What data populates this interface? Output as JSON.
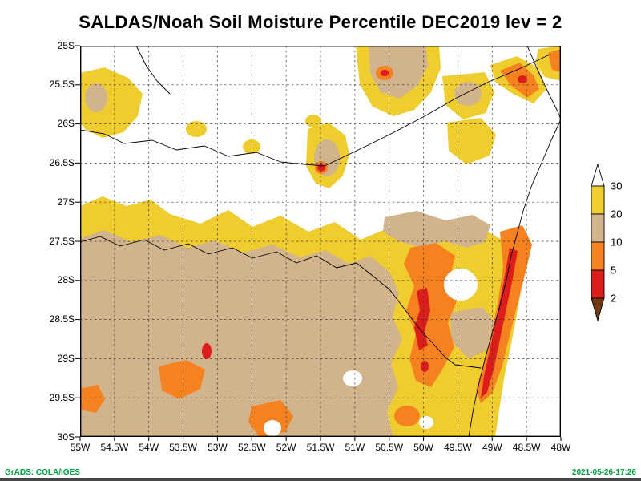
{
  "chart_data": {
    "type": "heatmap",
    "title": "SALDAS/Noah Soil Moisture Percentile DEC2019 lev = 2",
    "variable": "Soil Moisture Percentile",
    "model": "SALDAS/Noah",
    "time": "DEC2019",
    "level": 2,
    "grid": true,
    "x_axis": {
      "ticks": [
        "55W",
        "54.5W",
        "54W",
        "53.5W",
        "53W",
        "52.5W",
        "52W",
        "51.5W",
        "51W",
        "50.5W",
        "50W",
        "49.5W",
        "49W",
        "48.5W",
        "48W"
      ],
      "range": [
        "55W",
        "48W"
      ]
    },
    "y_axis": {
      "ticks": [
        "25S",
        "25.5S",
        "26S",
        "26.5S",
        "27S",
        "27.5S",
        "28S",
        "28.5S",
        "29S",
        "29.5S",
        "30S"
      ],
      "range": [
        "25S",
        "30S"
      ]
    },
    "colorbar": {
      "position": "right",
      "labels": [
        "30",
        "20",
        "10",
        "5",
        "2"
      ],
      "segments": [
        {
          "range": "> 30",
          "color": "#FFFFFF"
        },
        {
          "range": "20-30",
          "color": "#F0CD2F"
        },
        {
          "range": "10-20",
          "color": "#D2B48C"
        },
        {
          "range": "5-10",
          "color": "#F5821F"
        },
        {
          "range": "2-5",
          "color": "#DD1C1C"
        },
        {
          "range": "< 2",
          "color": "#70390F"
        }
      ]
    }
  },
  "footer": {
    "left": "GrADS: COLA/IGES",
    "right": "2021-05-26-17:26",
    "color": "#00A040"
  }
}
